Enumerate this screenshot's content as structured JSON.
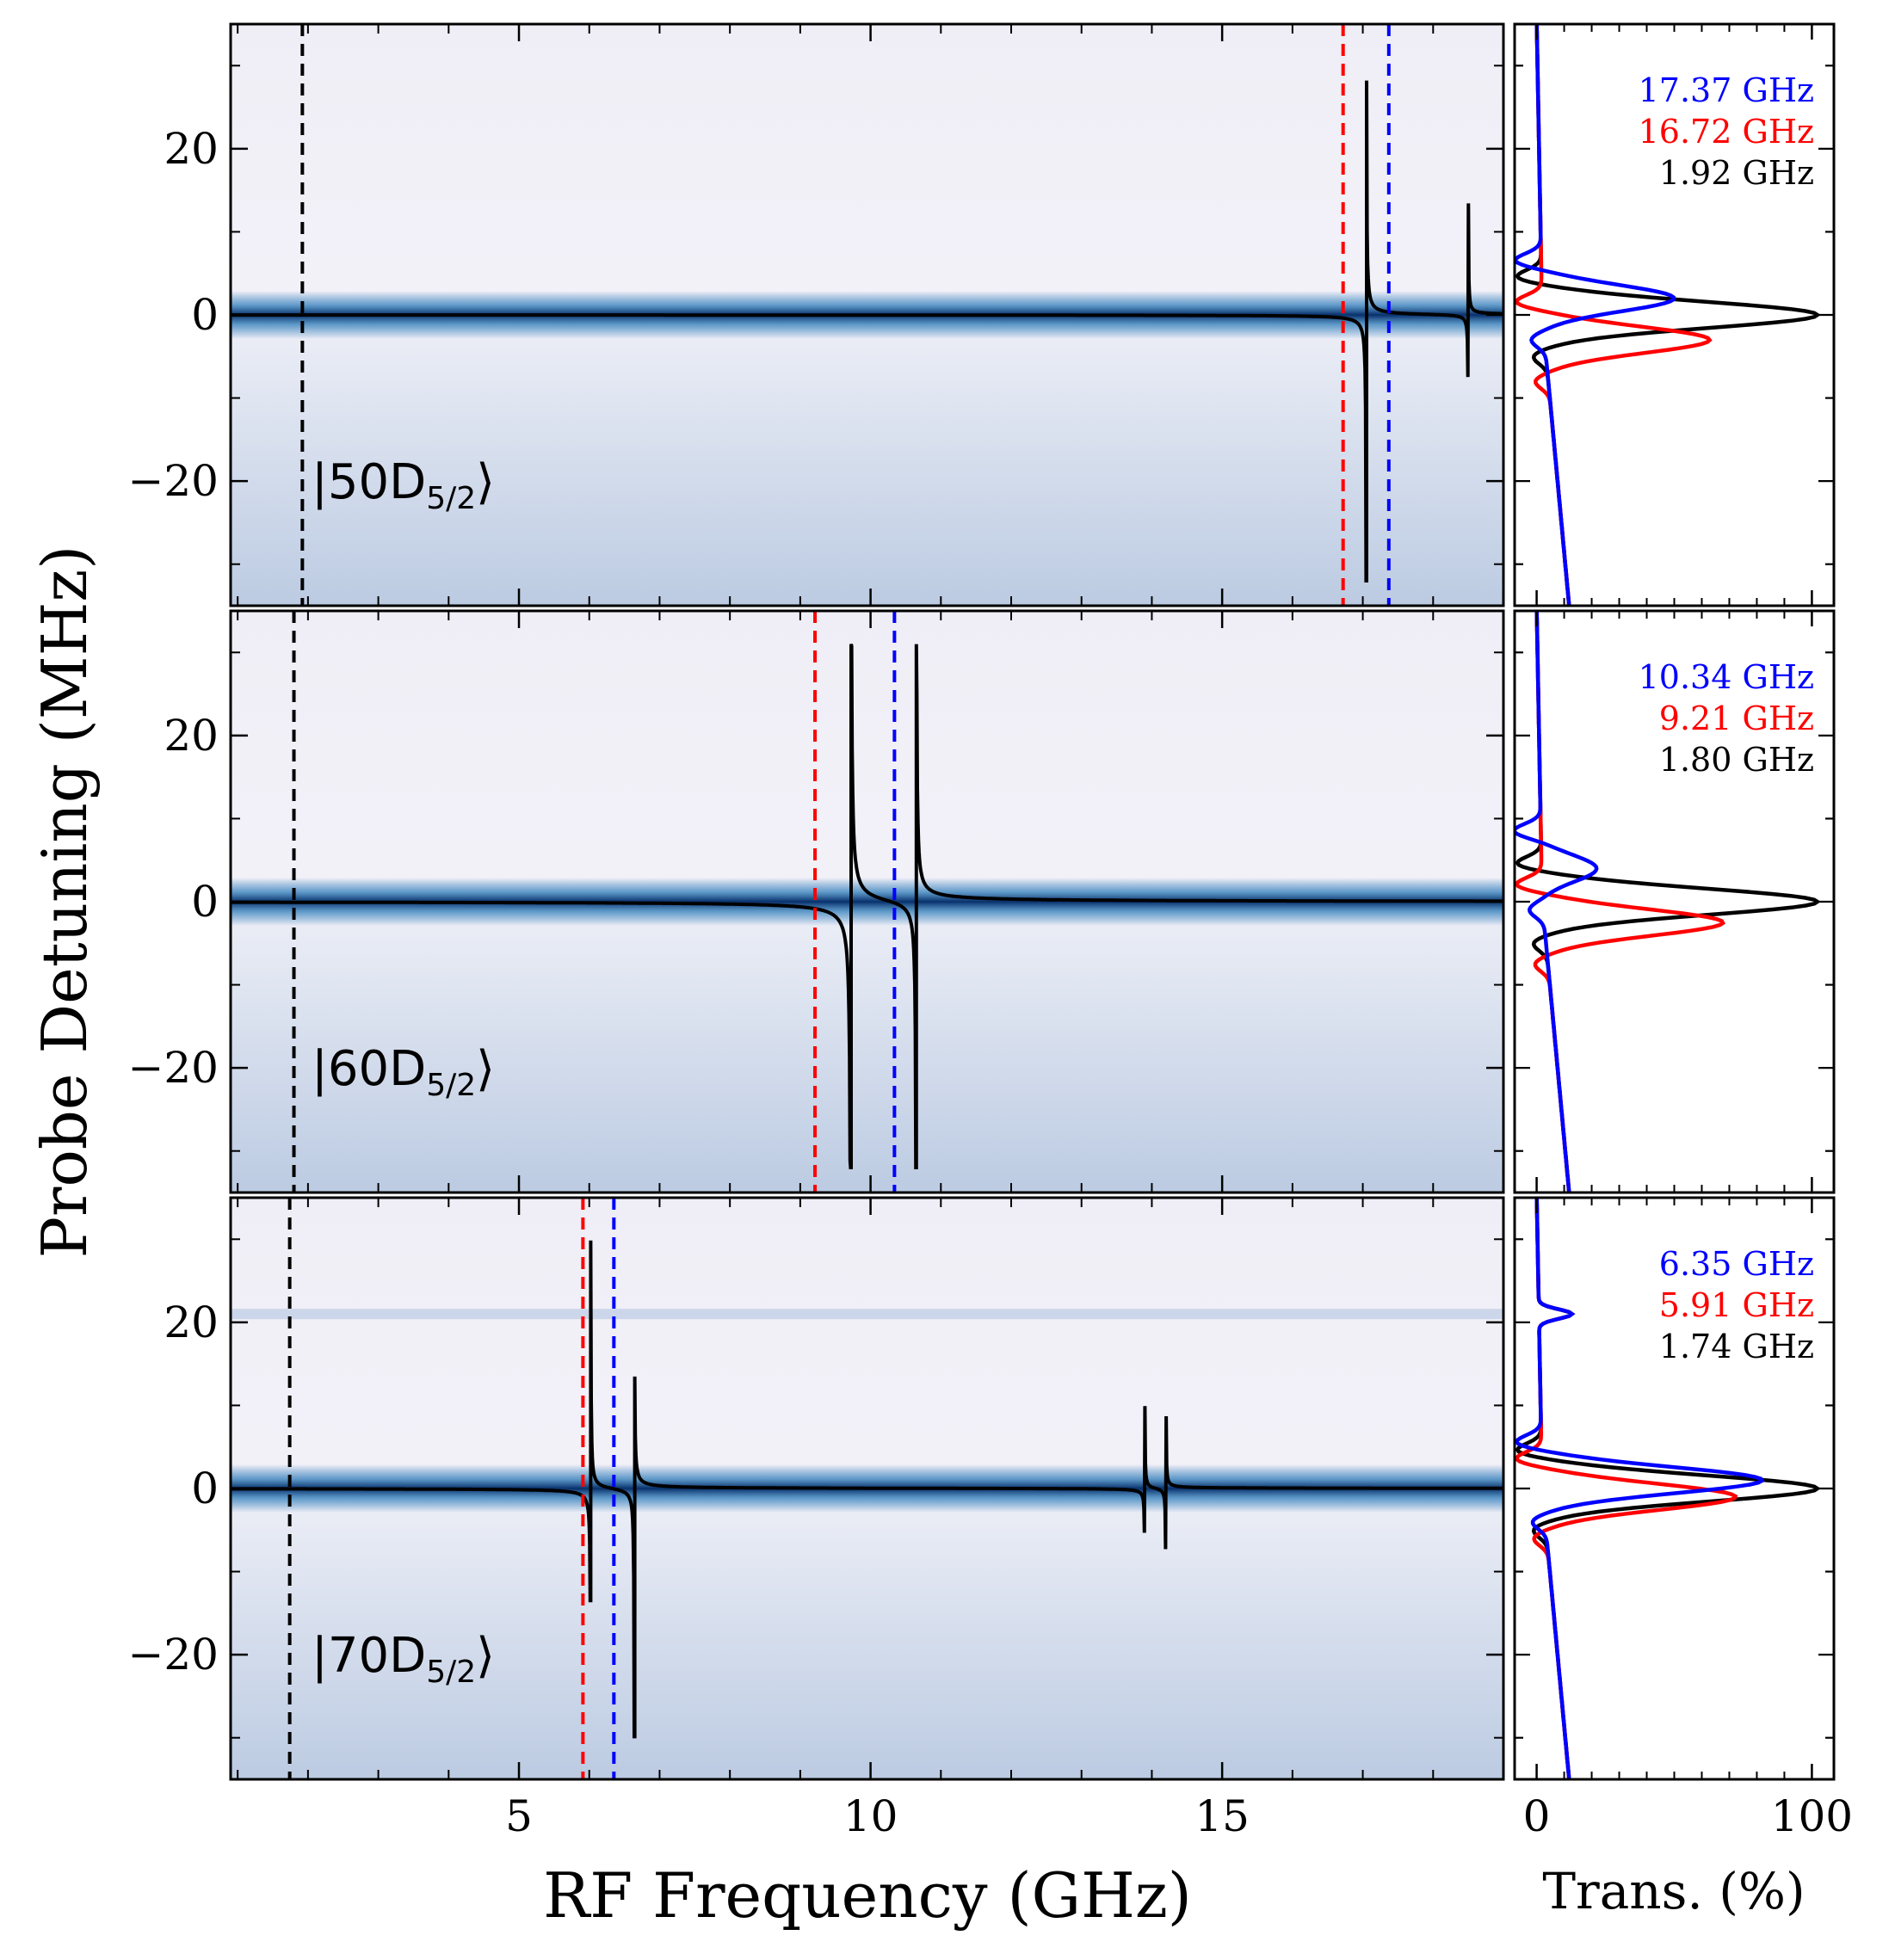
{
  "chart_data": {
    "type": "heatmap",
    "xlabel": "RF Frequency (GHz)",
    "ylabel": "Probe Detuning (MHz)",
    "side_xlabel": "Trans. (%)",
    "xlim": [
      0.9,
      19.0
    ],
    "ylim": [
      -35,
      35
    ],
    "side_xlim": [
      -8,
      108
    ],
    "xticks": [
      5,
      10,
      15
    ],
    "yticks": [
      -20,
      0,
      20
    ],
    "side_xticks": [
      0,
      100
    ],
    "colormap": "Blues",
    "panels": [
      {
        "state_main": "|50D",
        "state_sub": "5/2",
        "state_close": "⟩",
        "vlines": [
          {
            "x": 1.92,
            "color": "#000000"
          },
          {
            "x": 16.72,
            "color": "#ff0000"
          },
          {
            "x": 17.37,
            "color": "#0000ff"
          }
        ],
        "legend": [
          {
            "label": "17.37 GHz",
            "color": "#0000ff"
          },
          {
            "label": "16.72 GHz",
            "color": "#ff0000"
          },
          {
            "label": "1.92 GHz",
            "color": "#000000"
          }
        ],
        "resonances": [
          {
            "x": 17.05,
            "A": 0.12,
            "shift": 2.2
          },
          {
            "x": 18.5,
            "A": 0.04,
            "shift": 0
          }
        ]
      },
      {
        "state_main": "|60D",
        "state_sub": "5/2",
        "state_close": "⟩",
        "vlines": [
          {
            "x": 1.8,
            "color": "#000000"
          },
          {
            "x": 9.21,
            "color": "#ff0000"
          },
          {
            "x": 10.34,
            "color": "#0000ff"
          }
        ],
        "legend": [
          {
            "label": "10.34 GHz",
            "color": "#0000ff"
          },
          {
            "label": "9.21 GHz",
            "color": "#ff0000"
          },
          {
            "label": "1.80 GHz",
            "color": "#000000"
          }
        ],
        "resonances": [
          {
            "x": 9.72,
            "A": 0.35,
            "shift": 0
          },
          {
            "x": 10.65,
            "A": 0.22,
            "shift": 0
          }
        ]
      },
      {
        "state_main": "|70D",
        "state_sub": "5/2",
        "state_close": "⟩",
        "vlines": [
          {
            "x": 1.74,
            "color": "#000000"
          },
          {
            "x": 5.91,
            "color": "#ff0000"
          },
          {
            "x": 6.35,
            "color": "#0000ff"
          }
        ],
        "legend": [
          {
            "label": "6.35 GHz",
            "color": "#0000ff"
          },
          {
            "label": "5.91 GHz",
            "color": "#ff0000"
          },
          {
            "label": "1.74 GHz",
            "color": "#000000"
          }
        ],
        "resonances": [
          {
            "x": 6.02,
            "A": 0.09,
            "shift": 0
          },
          {
            "x": 6.64,
            "A": 0.09,
            "shift": 0
          },
          {
            "x": 13.9,
            "A": 0.03,
            "shift": 0
          },
          {
            "x": 14.2,
            "A": 0.03,
            "shift": 0
          }
        ]
      }
    ]
  }
}
